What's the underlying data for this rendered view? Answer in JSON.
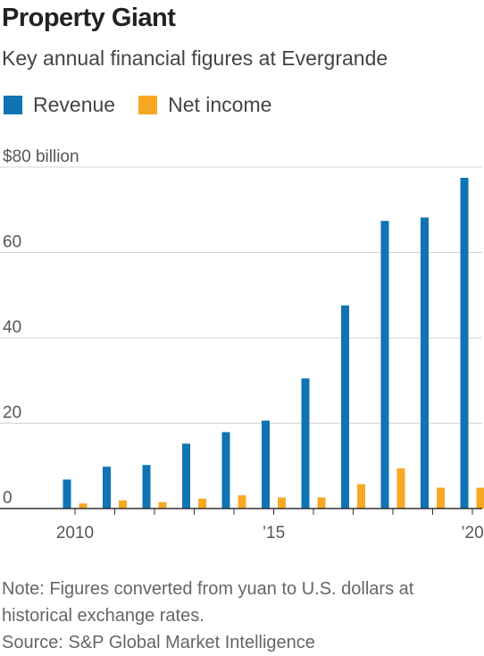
{
  "header": {
    "title": "Property Giant",
    "subtitle": "Key annual financial figures at Evergrande"
  },
  "legend": [
    {
      "label": "Revenue",
      "color": "#0f73b4"
    },
    {
      "label": "Net income",
      "color": "#f7a823"
    }
  ],
  "chart_data": {
    "type": "bar",
    "title": "Property Giant",
    "subtitle": "Key annual financial figures at Evergrande",
    "categories": [
      2010,
      2011,
      2012,
      2013,
      2014,
      2015,
      2016,
      2017,
      2018,
      2019,
      2020
    ],
    "x_tick_labels": [
      {
        "x": 2010,
        "label": "2010"
      },
      {
        "x": 2015,
        "label": "’15"
      },
      {
        "x": 2020,
        "label": "’20"
      }
    ],
    "series": [
      {
        "name": "Revenue",
        "color": "#0f73b4",
        "values": [
          6.8,
          9.8,
          10.2,
          15.2,
          17.9,
          20.6,
          30.5,
          47.6,
          67.4,
          68.2,
          77.5
        ]
      },
      {
        "name": "Net income",
        "color": "#f7a823",
        "values": [
          1.2,
          1.9,
          1.5,
          2.3,
          3.1,
          2.6,
          2.6,
          5.7,
          9.4,
          4.9,
          4.9
        ]
      }
    ],
    "ylim": [
      0,
      80
    ],
    "y_ticks": [
      0,
      20,
      40,
      60,
      80
    ],
    "y_tick_labels": [
      "0",
      "20",
      "40",
      "60",
      "$80 billion"
    ],
    "grid": true,
    "legend_position": "top-left"
  },
  "footnote": {
    "note": "Note: Figures converted from yuan to U.S. dollars at historical exchange rates.",
    "source": "Source: S&P Global Market Intelligence"
  }
}
